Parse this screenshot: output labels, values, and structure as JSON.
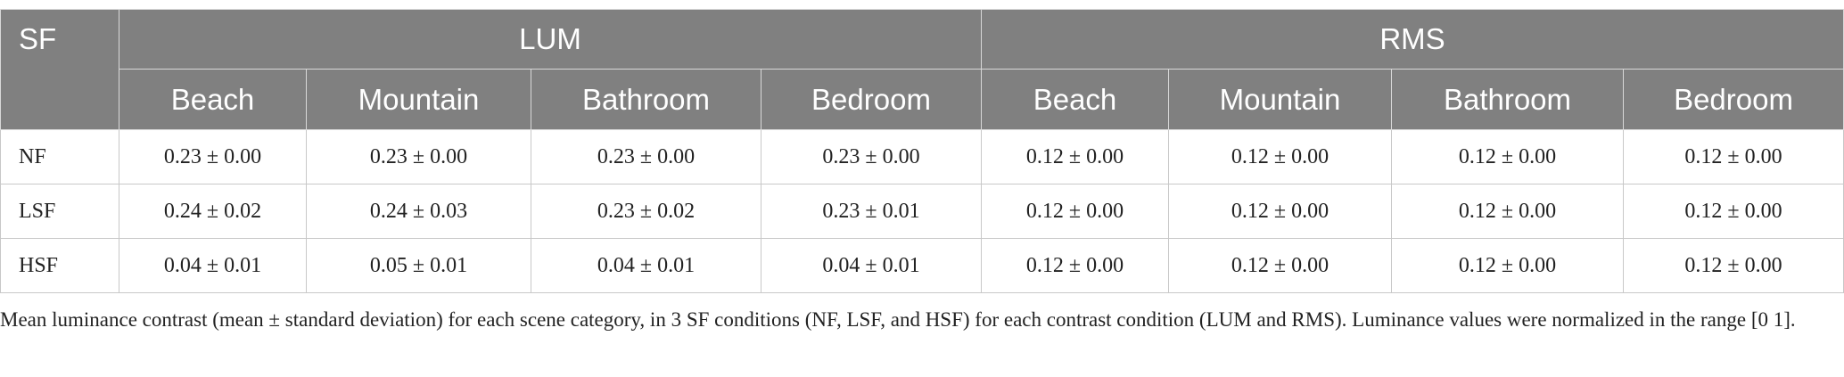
{
  "table": {
    "header": {
      "sf": "SF",
      "groups": [
        {
          "name": "LUM",
          "columns": [
            "Beach",
            "Mountain",
            "Bathroom",
            "Bedroom"
          ]
        },
        {
          "name": "RMS",
          "columns": [
            "Beach",
            "Mountain",
            "Bathroom",
            "Bedroom"
          ]
        }
      ]
    },
    "rows": [
      {
        "label": "NF",
        "cells": [
          "0.23 ± 0.00",
          "0.23 ± 0.00",
          "0.23 ± 0.00",
          "0.23 ± 0.00",
          "0.12 ± 0.00",
          "0.12 ± 0.00",
          "0.12 ± 0.00",
          "0.12 ± 0.00"
        ]
      },
      {
        "label": "LSF",
        "cells": [
          "0.24 ± 0.02",
          "0.24 ± 0.03",
          "0.23 ± 0.02",
          "0.23 ± 0.01",
          "0.12 ± 0.00",
          "0.12 ± 0.00",
          "0.12 ± 0.00",
          "0.12 ± 0.00"
        ]
      },
      {
        "label": "HSF",
        "cells": [
          "0.04 ± 0.01",
          "0.05 ± 0.01",
          "0.04 ± 0.01",
          "0.04 ± 0.01",
          "0.12 ± 0.00",
          "0.12 ± 0.00",
          "0.12 ± 0.00",
          "0.12 ± 0.00"
        ]
      }
    ],
    "caption": "Mean luminance contrast (mean ± standard deviation) for each scene category, in 3 SF conditions (NF, LSF, and HSF) for each contrast condition (LUM and RMS). Luminance values were normalized in the range [0 1]."
  }
}
